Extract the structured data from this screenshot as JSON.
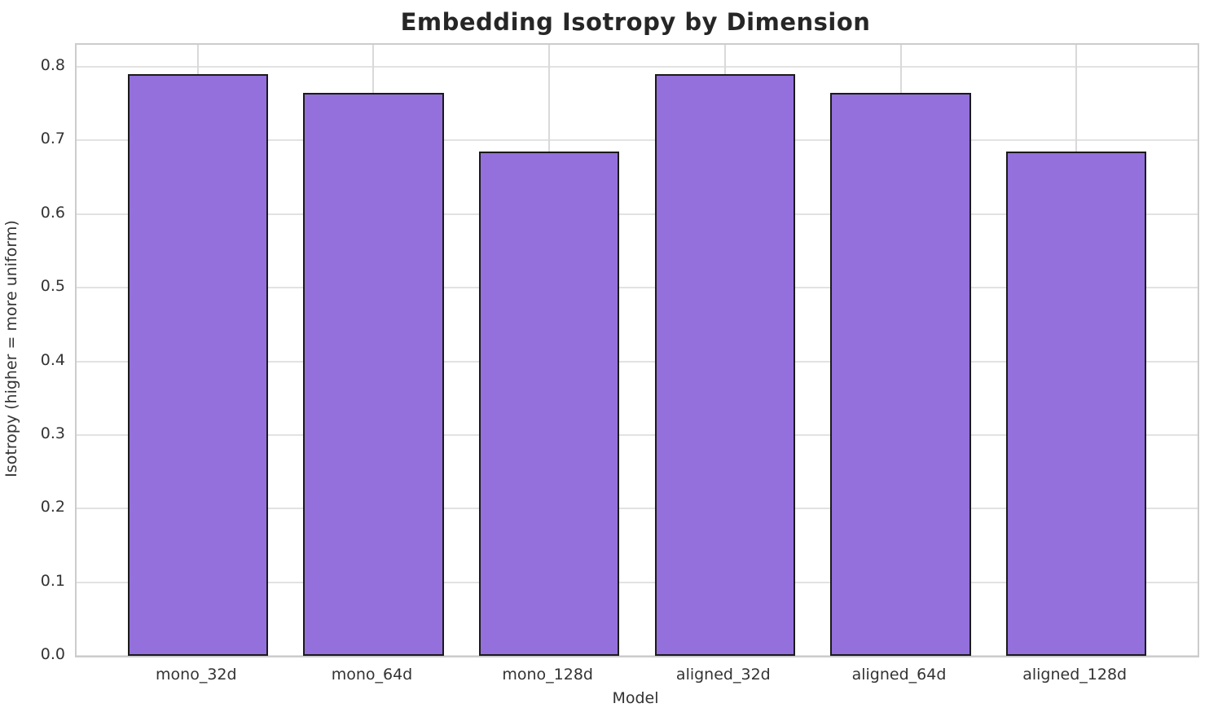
{
  "chart_data": {
    "type": "bar",
    "title": "Embedding Isotropy by Dimension",
    "xlabel": "Model",
    "ylabel": "Isotropy (higher = more uniform)",
    "categories": [
      "mono_32d",
      "mono_64d",
      "mono_128d",
      "aligned_32d",
      "aligned_64d",
      "aligned_128d"
    ],
    "values": [
      0.79,
      0.765,
      0.685,
      0.79,
      0.765,
      0.685
    ],
    "ytick_labels": [
      "0.0",
      "0.1",
      "0.2",
      "0.3",
      "0.4",
      "0.5",
      "0.6",
      "0.7",
      "0.8"
    ],
    "yticks": [
      0.0,
      0.1,
      0.2,
      0.3,
      0.4,
      0.5,
      0.6,
      0.7,
      0.8
    ],
    "ylim": [
      0,
      0.83
    ],
    "grid": true,
    "legend_position": "none",
    "colors": {
      "bar_fill": "#9370DB",
      "bar_edge": "#1a1a1a",
      "grid_horizontal": "#e2e2e2",
      "grid_vertical": "#d9d9d9",
      "spine": "#cccccc",
      "title_text": "#262626",
      "tick_text": "#333333",
      "background": "#ffffff"
    }
  }
}
